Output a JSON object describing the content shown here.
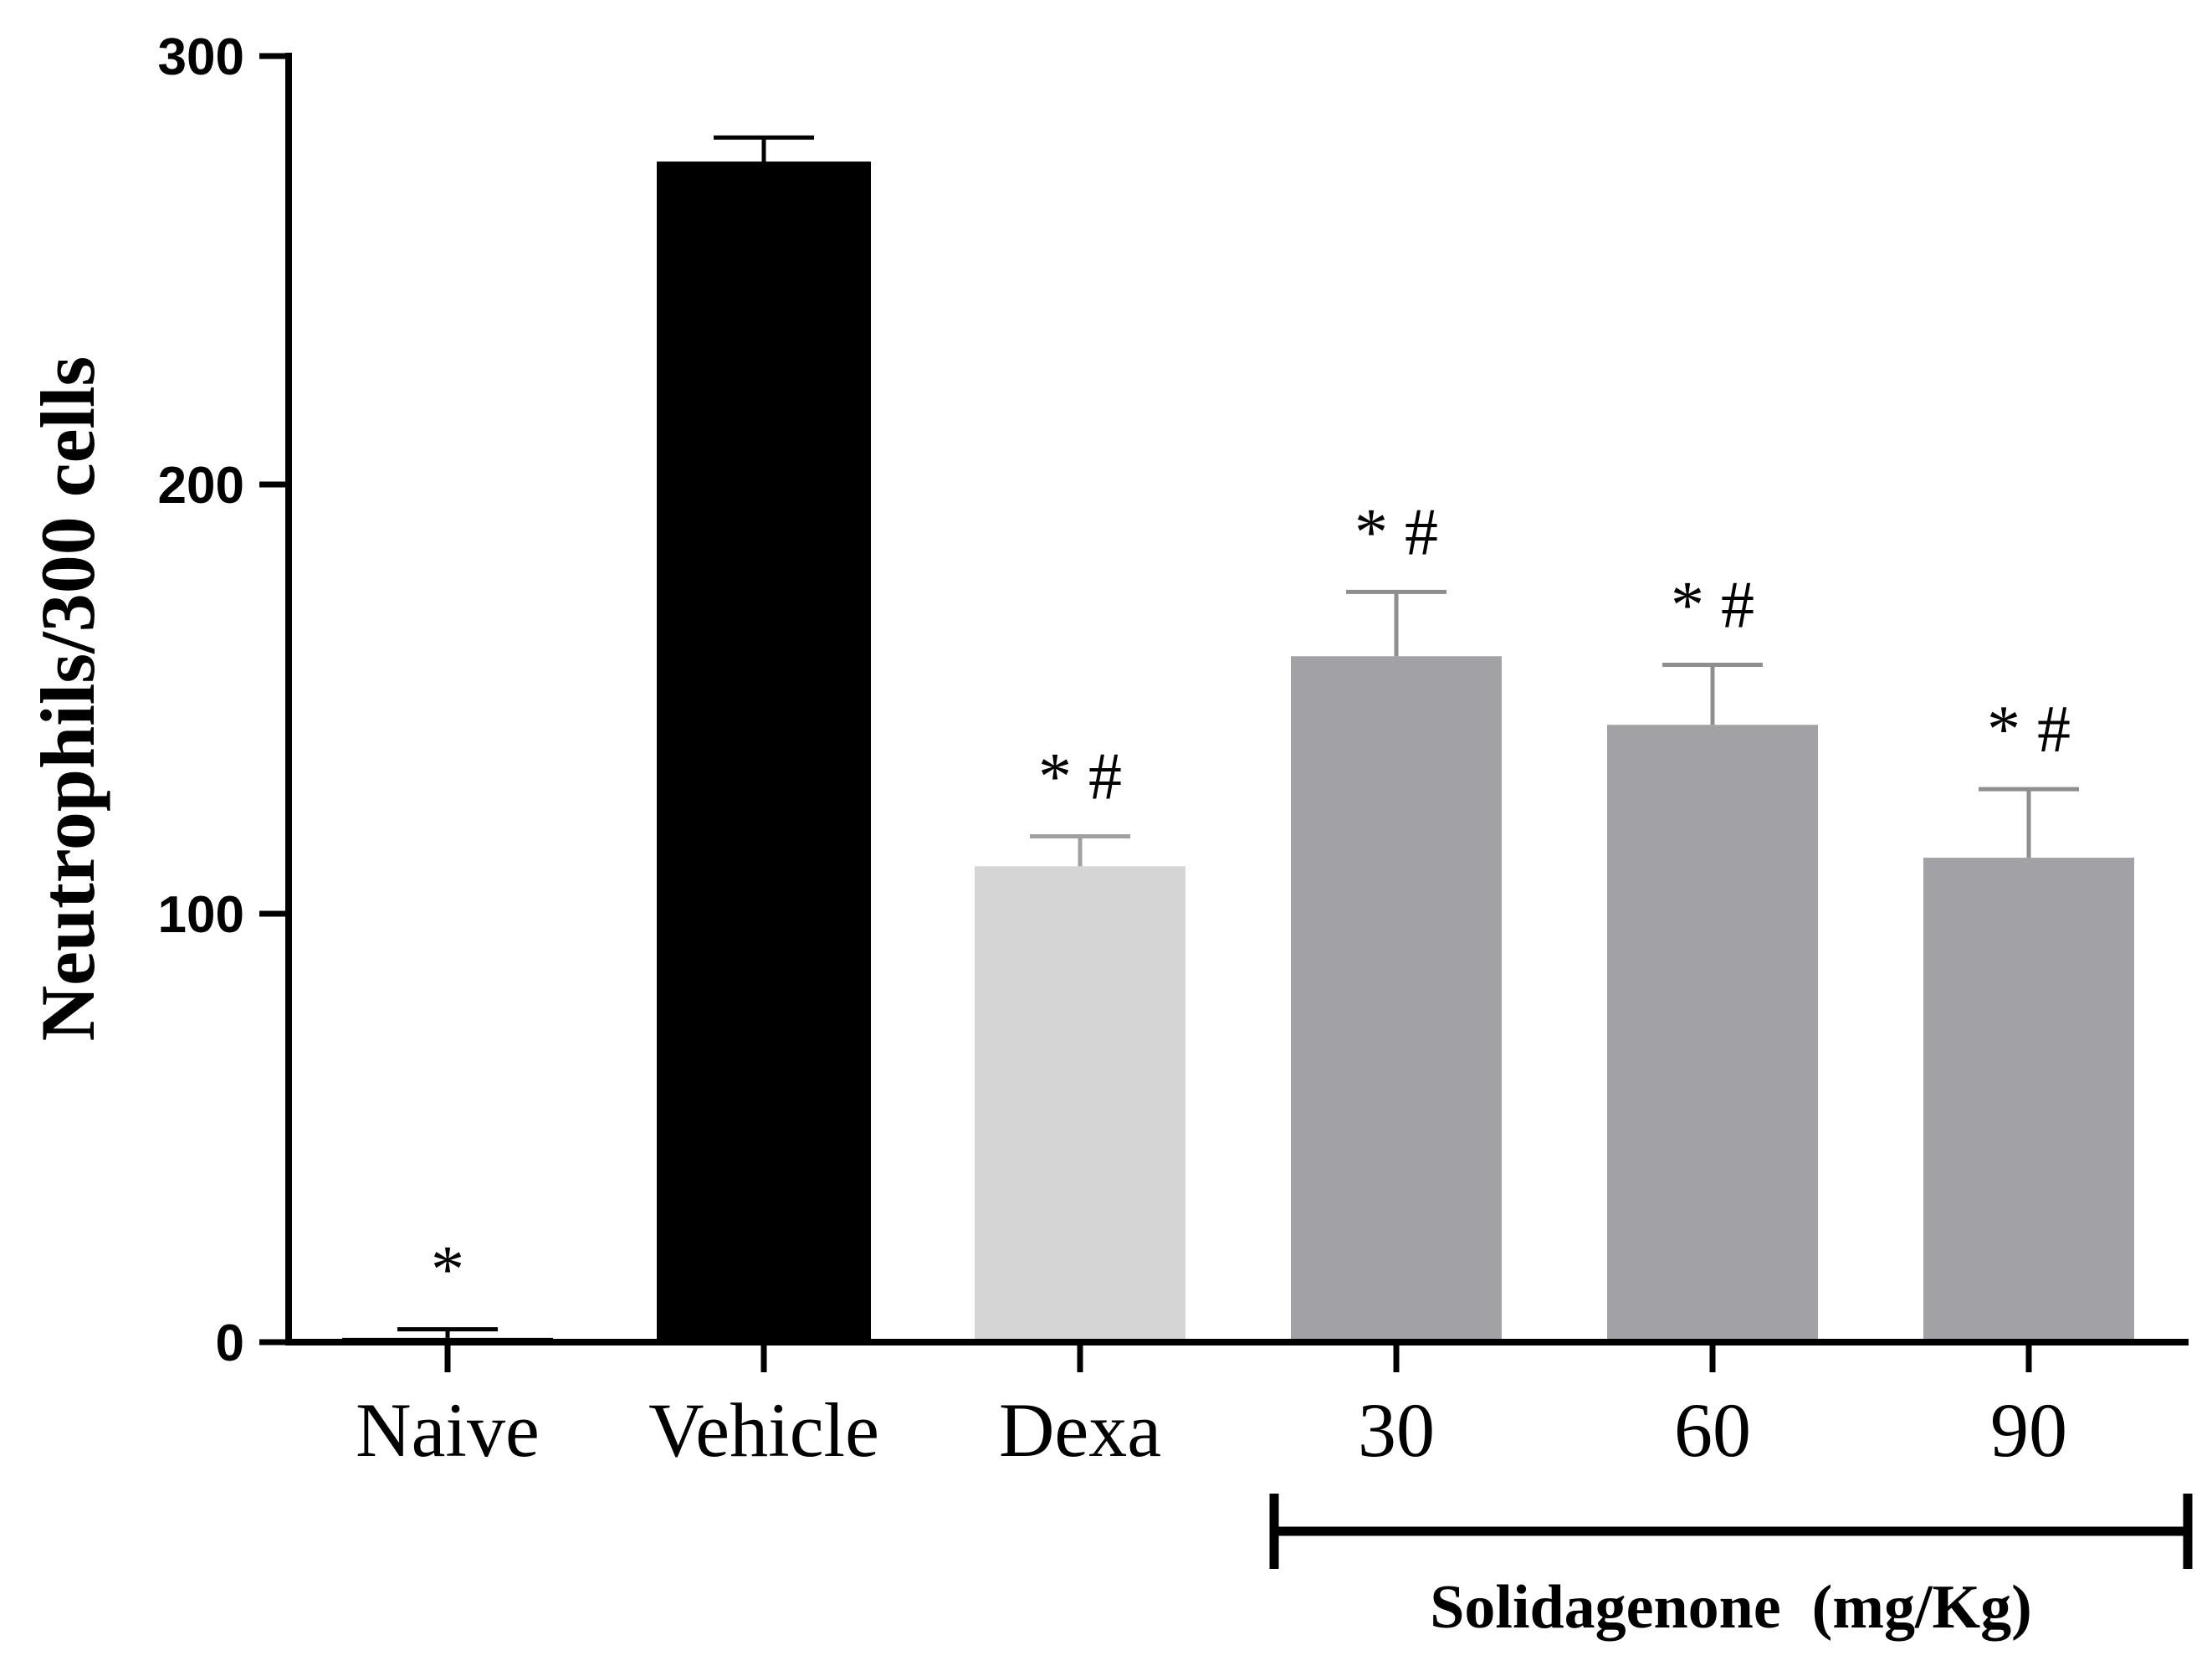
{
  "chart_data": {
    "type": "bar",
    "categories": [
      "Naive",
      "Vehicle",
      "Dexa",
      "30",
      "60",
      "90"
    ],
    "values": [
      1,
      275,
      111,
      160,
      144,
      113
    ],
    "errors": [
      2,
      6,
      7,
      15,
      14,
      16
    ],
    "annotations": [
      "*",
      "",
      "* #",
      "* #",
      "* #",
      "* #"
    ],
    "bar_colors": [
      "#000000",
      "#000000",
      "#d5d5d5",
      "#a2a1a6",
      "#a2a1a6",
      "#a2a1a6"
    ],
    "error_colors": [
      "#000000",
      "#000000",
      "#a0a0a0",
      "#8e8e8e",
      "#8e8e8e",
      "#8e8e8e"
    ],
    "title": "",
    "xlabel": "",
    "ylabel": "Neutrophils/300 cells",
    "ylim": [
      0,
      300
    ],
    "yticks": [
      "0",
      "100",
      "200",
      "300"
    ],
    "group_bracket": {
      "label": "Solidagenone  (mg/Kg)",
      "categories": [
        "30",
        "60",
        "90"
      ]
    },
    "grid": false,
    "legend": "none"
  }
}
